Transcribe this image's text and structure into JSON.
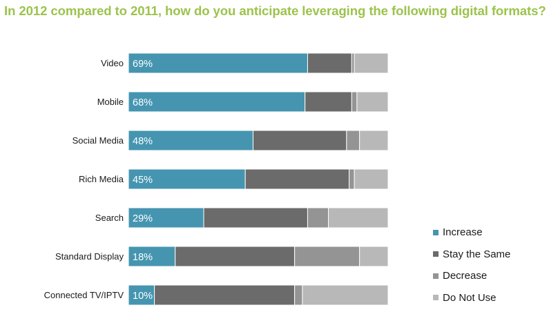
{
  "chart_data": {
    "type": "bar",
    "orientation": "horizontal",
    "stacked": true,
    "title": "In 2012 compared to 2011, how do you anticipate leveraging the following digital formats?",
    "categories": [
      "Video",
      "Mobile",
      "Social Media",
      "Rich Media",
      "Search",
      "Standard Display",
      "Connected TV/IPTV"
    ],
    "series": [
      {
        "name": "Increase",
        "color": "#4595b0",
        "values": [
          69,
          68,
          48,
          45,
          29,
          18,
          10
        ]
      },
      {
        "name": "Stay the Same",
        "color": "#6b6b6b",
        "values": [
          17,
          18,
          36,
          40,
          40,
          46,
          54
        ]
      },
      {
        "name": "Decrease",
        "color": "#949494",
        "values": [
          1,
          2,
          5,
          2,
          8,
          25,
          3
        ]
      },
      {
        "name": "Do Not Use",
        "color": "#b8b8b8",
        "values": [
          13,
          12,
          11,
          13,
          23,
          11,
          33
        ]
      }
    ],
    "data_labels": [
      "69%",
      "68%",
      "48%",
      "45%",
      "29%",
      "18%",
      "10%"
    ],
    "xlim": [
      0,
      100
    ],
    "legend_position": "bottom-right",
    "grid": false
  }
}
